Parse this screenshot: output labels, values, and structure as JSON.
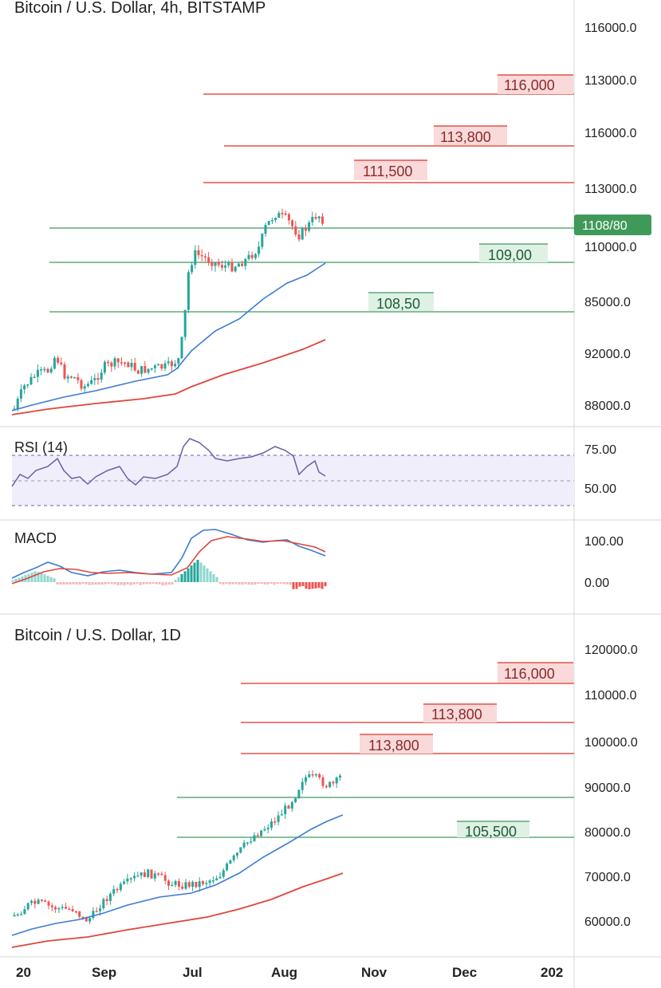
{
  "colors": {
    "up": "#26a69a",
    "down": "#ef5350",
    "resistance_line": "#e3524a",
    "resistance_fill": "#f9d9d9",
    "resistance_text": "#8a2b2b",
    "support_line": "#3f9a5a",
    "support_fill": "#dff1e4",
    "support_text": "#1f5d33",
    "ma_fast": "#3a7bd5",
    "ma_slow": "#e0463b",
    "rsi_line": "#6a5fa8",
    "rsi_band": "#f0eefb",
    "price_tag": "#3f9a5a",
    "divider": "#d4d4d4"
  },
  "chart_data": [
    {
      "type": "candlestick",
      "title": "Bitcoin / U.S. Dollar, 4h, BITSTAMP",
      "y_axis_labels": [
        "116000.0",
        "113000.0",
        "116000.0",
        "113000.0",
        "110000.0",
        "85000.0",
        "92000.0",
        "88000.0"
      ],
      "current_price_tag": "1108/80",
      "resistance_levels": [
        "116,000",
        "113,800",
        "111,500"
      ],
      "support_levels": [
        "109,00",
        "108,50"
      ],
      "indicators": {
        "rsi": {
          "title": "RSI (14)",
          "levels": [
            "75.00",
            "50.00"
          ]
        },
        "macd": {
          "title": "MACD",
          "levels": [
            "100.00",
            "0.00"
          ]
        }
      }
    },
    {
      "type": "candlestick",
      "title": "Bitcoin / U.S. Dollar, 1D",
      "y_axis_labels": [
        "120000.0",
        "110000.0",
        "100000.0",
        "90000.0",
        "80000.0",
        "70000.0",
        "60000.0"
      ],
      "resistance_levels": [
        "116,000",
        "113,800",
        "113,800"
      ],
      "support_levels": [
        "105,500"
      ],
      "x_axis_labels": [
        "20",
        "Sep",
        "Jul",
        "Aug",
        "Nov",
        "Dec",
        "202"
      ]
    }
  ]
}
